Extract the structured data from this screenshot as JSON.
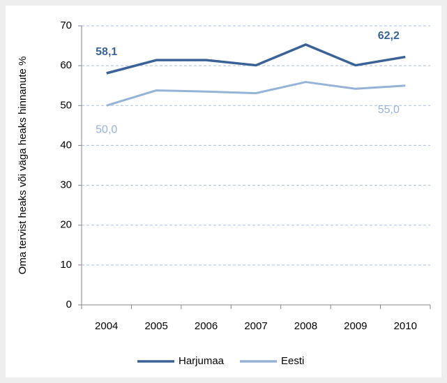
{
  "chart_data": {
    "type": "line",
    "y_label": "Oma tervist heaks või väga heaks hinnanute %",
    "categories": [
      "2004",
      "2005",
      "2006",
      "2007",
      "2008",
      "2009",
      "2010"
    ],
    "series": [
      {
        "name": "Harjumaa",
        "color": "#3a6296",
        "values": [
          58.1,
          61.4,
          61.4,
          60.1,
          65.3,
          60.1,
          62.2
        ],
        "value_labels": [
          "58,1",
          null,
          null,
          null,
          null,
          null,
          "62,2"
        ]
      },
      {
        "name": "Eesti",
        "color": "#95b3d7",
        "values": [
          50.0,
          53.8,
          53.5,
          53.1,
          55.9,
          54.2,
          55.0
        ],
        "value_labels": [
          "50,0",
          null,
          null,
          null,
          null,
          null,
          "55,0"
        ]
      }
    ],
    "ylim": [
      0,
      70
    ],
    "yticks": [
      0,
      10,
      20,
      30,
      40,
      50,
      60,
      70
    ],
    "grid": true,
    "legend": "bottom"
  }
}
